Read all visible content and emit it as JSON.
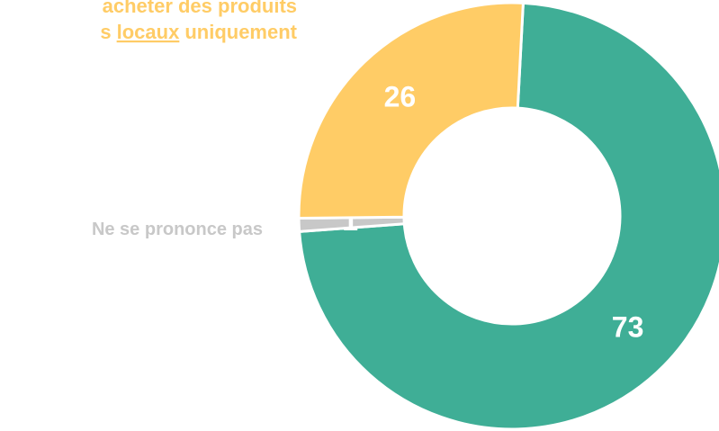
{
  "chart_data": {
    "type": "donut",
    "categories": [
      null,
      "Ne se prononce pas",
      null
    ],
    "values": [
      73,
      1,
      26
    ],
    "colors": [
      "#3fae96",
      "#c8c8c8",
      "#ffcc66"
    ],
    "annotation": {
      "line1": "acheter des produits",
      "line2": [
        "s",
        "locaux",
        "uniquement"
      ],
      "color": "#ffcc66"
    }
  }
}
